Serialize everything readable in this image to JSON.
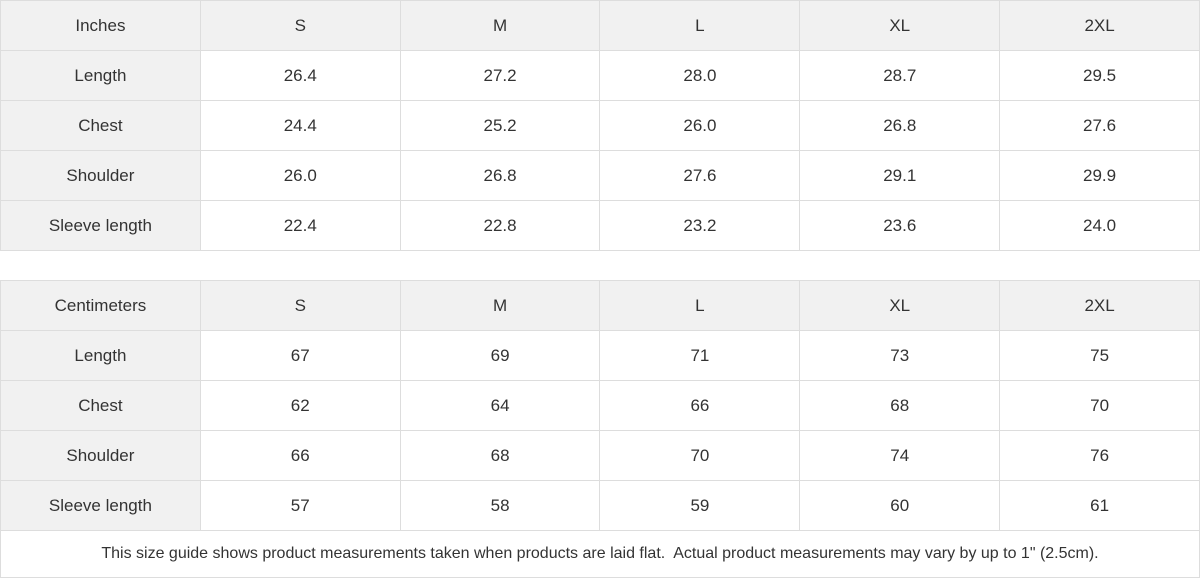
{
  "tables": [
    {
      "unit_label": "Inches",
      "sizes": [
        "S",
        "M",
        "L",
        "XL",
        "2XL"
      ],
      "rows": [
        {
          "label": "Length",
          "values": [
            "26.4",
            "27.2",
            "28.0",
            "28.7",
            "29.5"
          ]
        },
        {
          "label": "Chest",
          "values": [
            "24.4",
            "25.2",
            "26.0",
            "26.8",
            "27.6"
          ]
        },
        {
          "label": "Shoulder",
          "values": [
            "26.0",
            "26.8",
            "27.6",
            "29.1",
            "29.9"
          ]
        },
        {
          "label": "Sleeve length",
          "values": [
            "22.4",
            "22.8",
            "23.2",
            "23.6",
            "24.0"
          ]
        }
      ]
    },
    {
      "unit_label": "Centimeters",
      "sizes": [
        "S",
        "M",
        "L",
        "XL",
        "2XL"
      ],
      "rows": [
        {
          "label": "Length",
          "values": [
            "67",
            "69",
            "71",
            "73",
            "75"
          ]
        },
        {
          "label": "Chest",
          "values": [
            "62",
            "64",
            "66",
            "68",
            "70"
          ]
        },
        {
          "label": "Shoulder",
          "values": [
            "66",
            "68",
            "70",
            "74",
            "76"
          ]
        },
        {
          "label": "Sleeve length",
          "values": [
            "57",
            "58",
            "59",
            "60",
            "61"
          ]
        }
      ]
    }
  ],
  "footer": {
    "note": "This size guide shows product measurements taken when products are laid flat.  Actual product measurements may vary by up to 1\" (2.5cm)."
  },
  "colors": {
    "header_bg": "#f1f1f1",
    "cell_bg": "#ffffff",
    "border": "#dddddd",
    "text": "#333333"
  }
}
